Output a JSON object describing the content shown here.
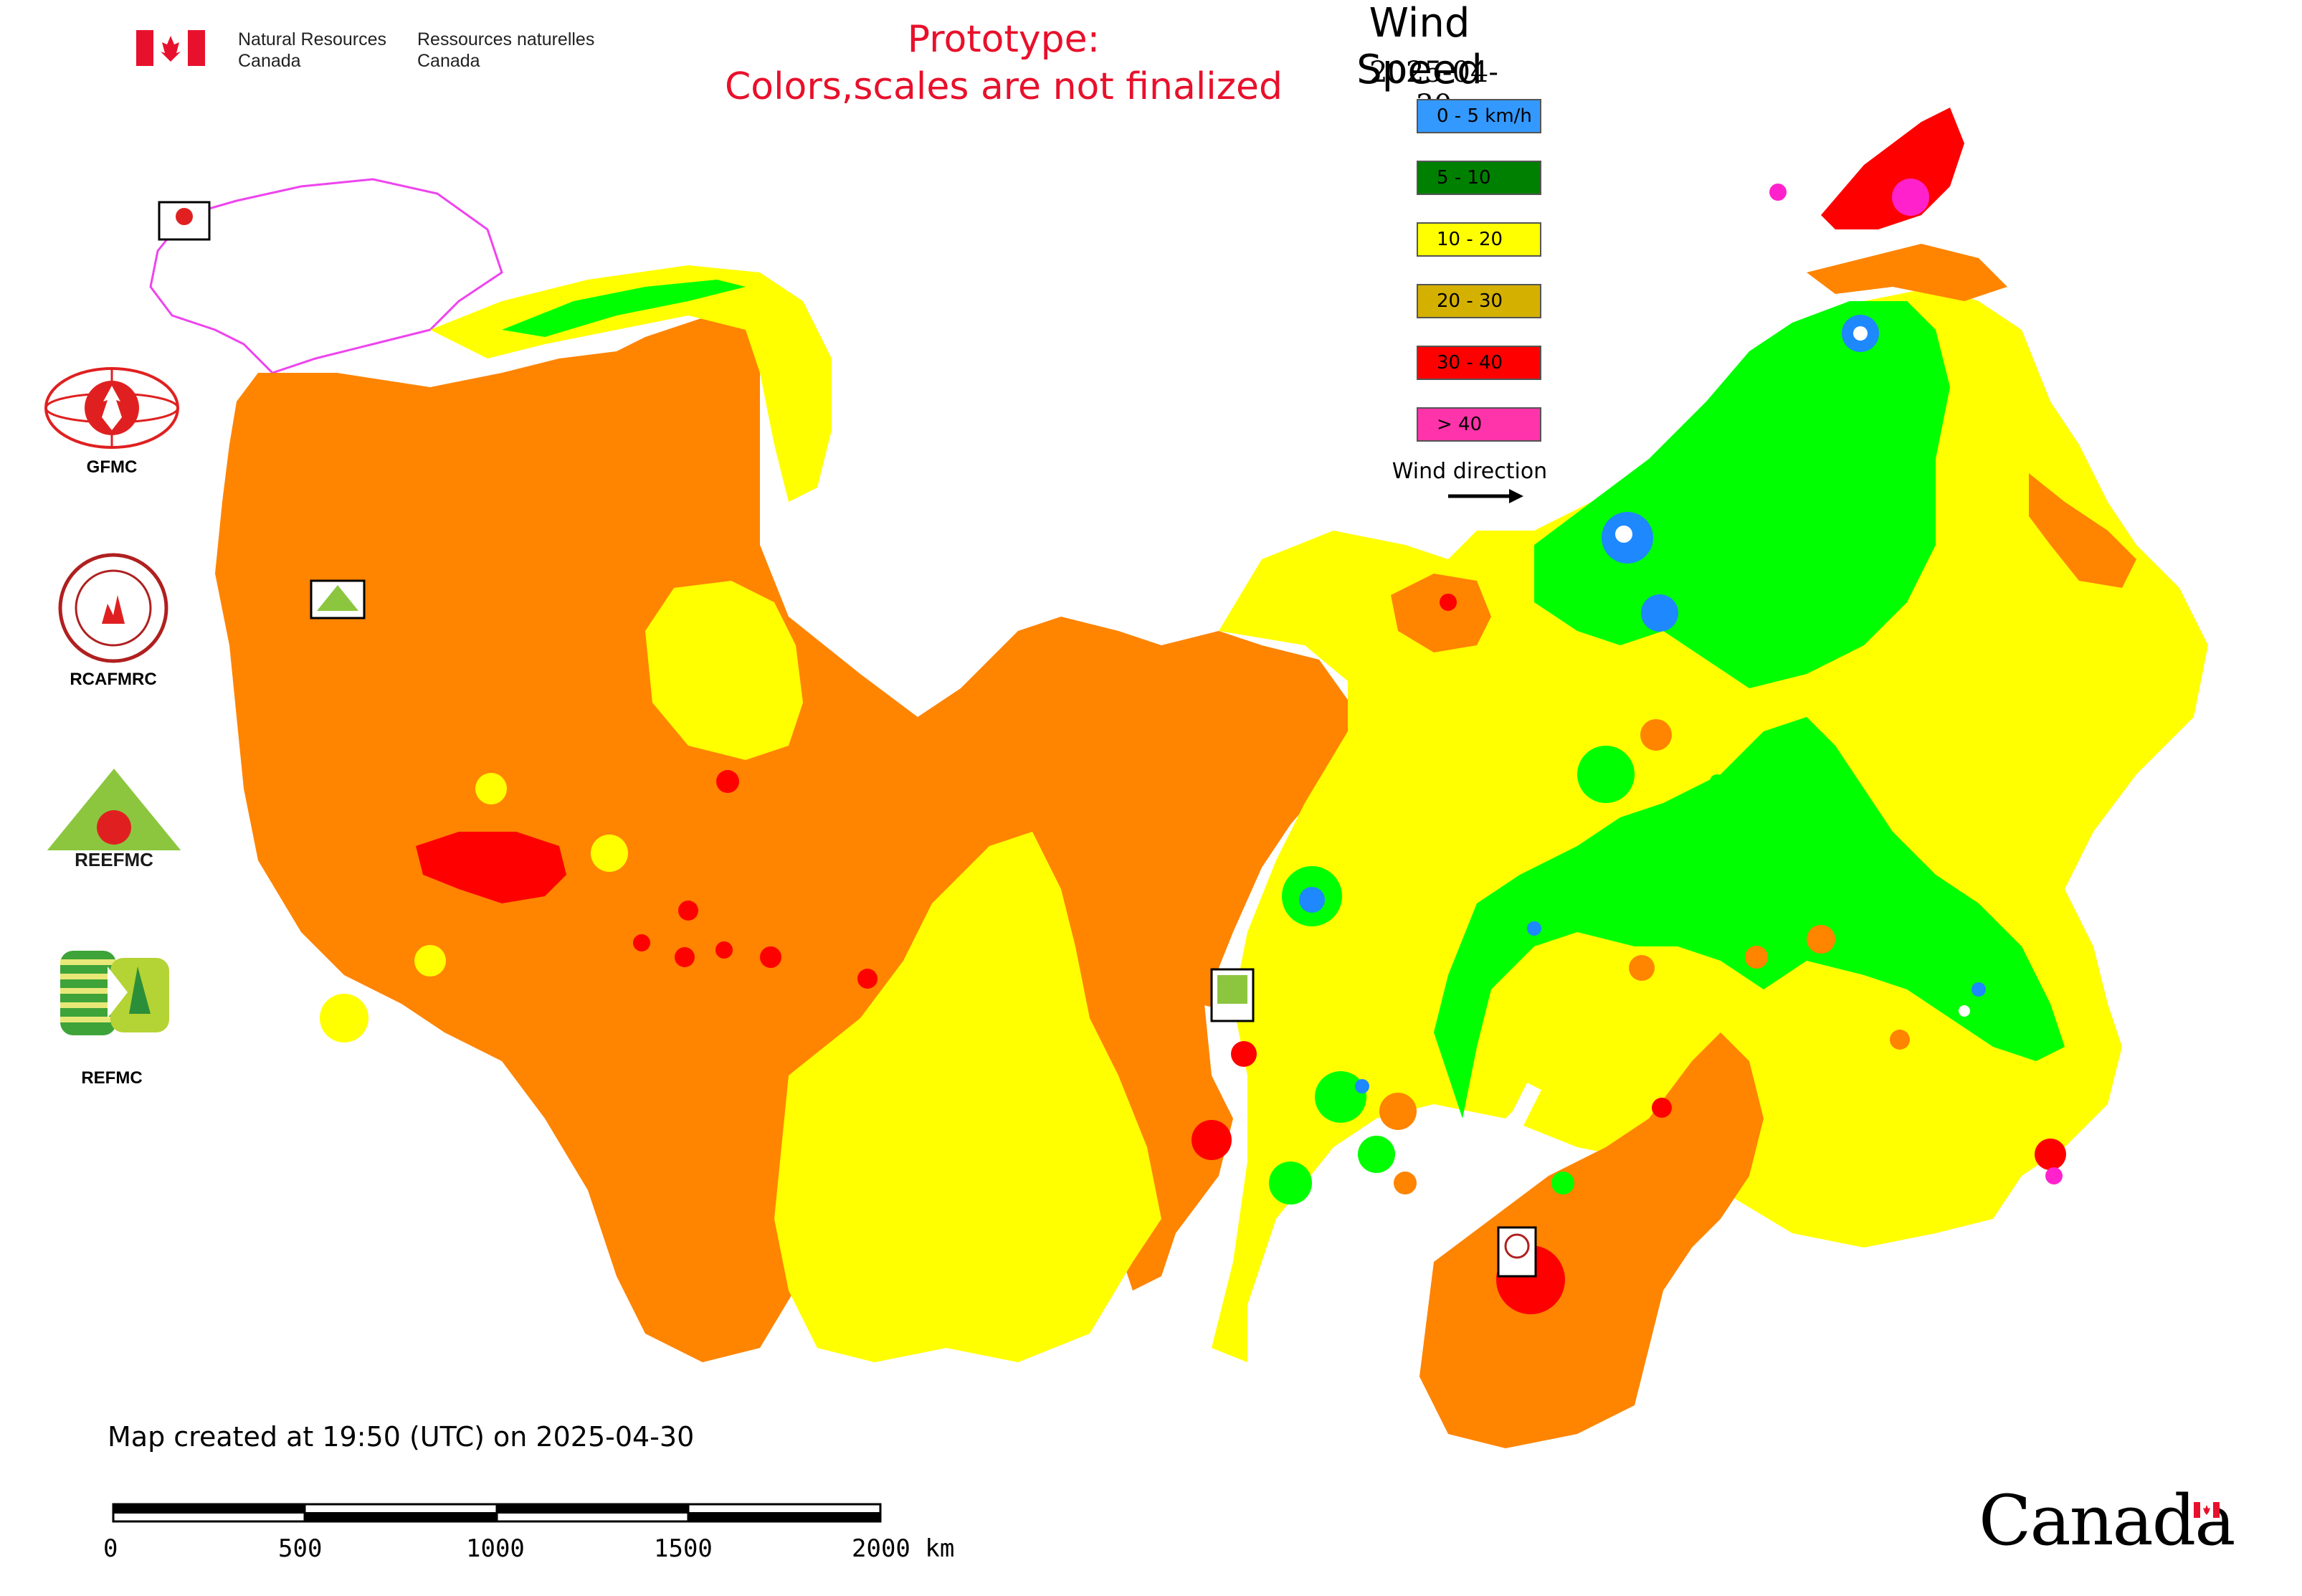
{
  "header": {
    "org_en_line1": "Natural Resources",
    "org_en_line2": "Canada",
    "org_fr_line1": "Ressources naturelles",
    "org_fr_line2": "Canada",
    "prototype_line1": "Prototype:",
    "prototype_line2": "Colors,scales are not finalized"
  },
  "legend": {
    "title": "Wind Speed",
    "date": "2025-04-30",
    "items": [
      {
        "label": "0 - 5 km/h",
        "color": "#3399ff"
      },
      {
        "label": "5 - 10",
        "color": "#008000"
      },
      {
        "label": "10 - 20",
        "color": "#ffff00"
      },
      {
        "label": "20 - 30",
        "color": "#d4b000"
      },
      {
        "label": "30 - 40",
        "color": "#ff0000"
      },
      {
        "label": "> 40",
        "color": "#ff33aa"
      }
    ],
    "wind_direction_label": "Wind direction"
  },
  "map_colors": {
    "orange": "#ff8400",
    "yellow": "#ffff00",
    "green": "#00ff00",
    "blue": "#1e88ff",
    "red": "#ff0000",
    "magenta": "#ff00ff",
    "border": "#ee44ee"
  },
  "side_logos": {
    "gfmc_label": "GFMC",
    "rcafmrc_label": "RCAFMRC",
    "reefmc_label": "REEFMC",
    "refmc_label": "REFMC"
  },
  "footer": {
    "created": "Map created at 19:50 (UTC) on 2025-04-30",
    "scale_ticks": [
      "0",
      "500",
      "1000",
      "1500",
      "2000 km"
    ],
    "canada_wordmark": "Canada"
  },
  "icons": [
    "canada-flag-icon",
    "arrow-right-icon",
    "gfmc-logo-icon",
    "rcafmrc-logo-icon",
    "reefmc-logo-icon",
    "refmc-logo-icon"
  ]
}
